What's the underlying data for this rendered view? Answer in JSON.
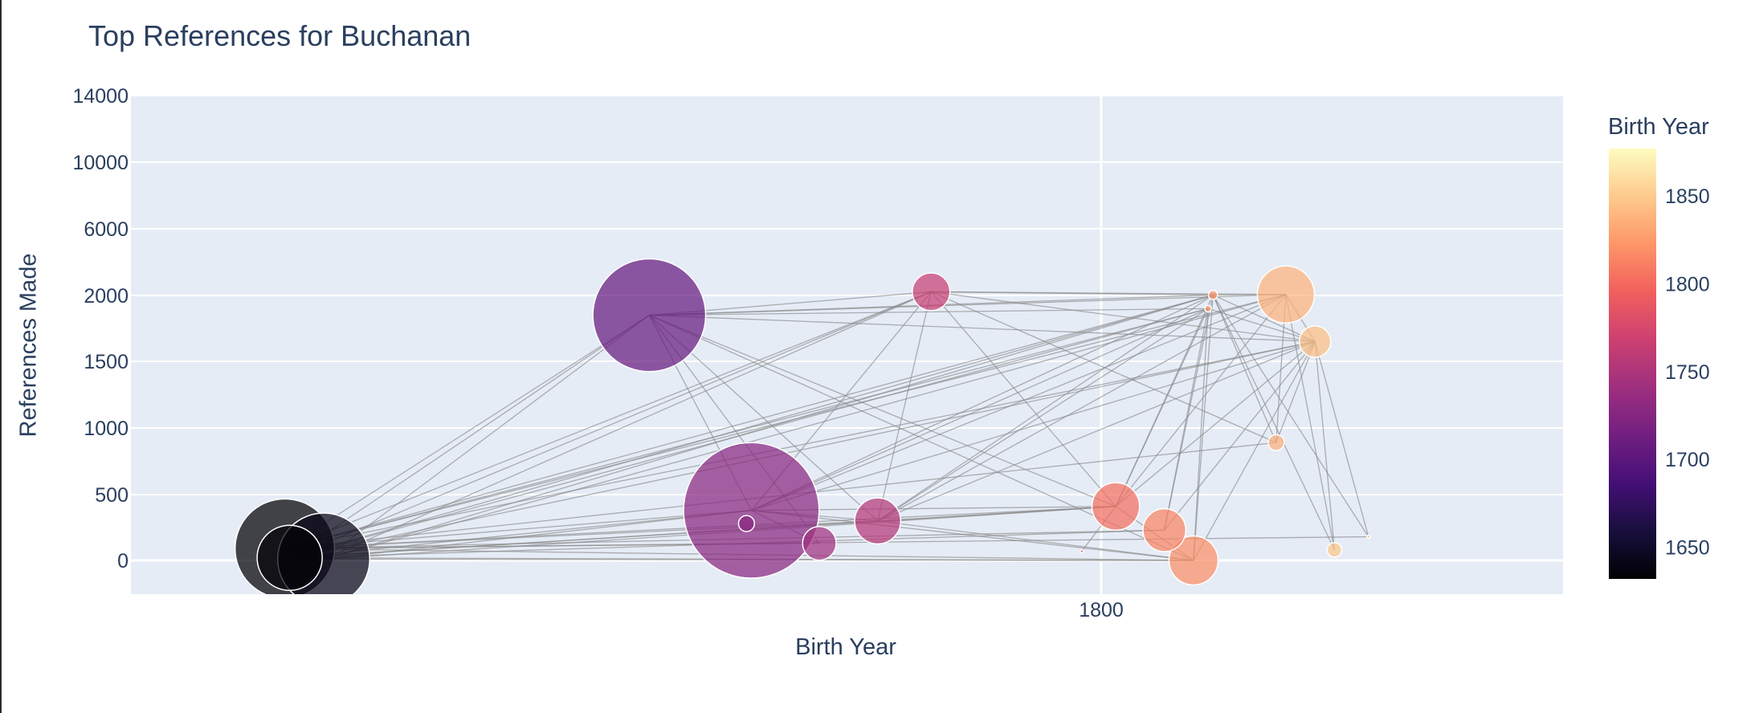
{
  "chart_data": {
    "type": "scatter",
    "title": "Top References for Buchanan",
    "xlabel": "Birth Year",
    "ylabel": "References Made",
    "y_tick_labels": [
      "0",
      "500",
      "1000",
      "1500",
      "2000",
      "6000",
      "10000",
      "14000"
    ],
    "x_tick_labels": [
      "1800"
    ],
    "colorbar": {
      "title": "Birth Year",
      "range": [
        1632,
        1877
      ],
      "tick_labels": [
        "1650",
        "1700",
        "1750",
        "1800",
        "1850"
      ],
      "tick_values": [
        1650,
        1700,
        1750,
        1800,
        1850
      ],
      "colorscale": "magma"
    },
    "grid": true,
    "legend": "none",
    "edge_color": "#888888",
    "points": [
      {
        "x": 1632,
        "y": 90,
        "size": 7000
      },
      {
        "x": 1633,
        "y": 20,
        "size": 3000
      },
      {
        "x": 1640,
        "y": 10,
        "size": 6000
      },
      {
        "x": 1707,
        "y": 1850,
        "size": 9000
      },
      {
        "x": 1728,
        "y": 380,
        "size": 13000
      },
      {
        "x": 1727,
        "y": 280,
        "size": 180
      },
      {
        "x": 1742,
        "y": 130,
        "size": 800
      },
      {
        "x": 1754,
        "y": 300,
        "size": 1500
      },
      {
        "x": 1765,
        "y": 2220,
        "size": 1000
      },
      {
        "x": 1796,
        "y": 70,
        "size": 5
      },
      {
        "x": 1803,
        "y": 410,
        "size": 1600
      },
      {
        "x": 1813,
        "y": 230,
        "size": 1300
      },
      {
        "x": 1819,
        "y": 0,
        "size": 1700
      },
      {
        "x": 1823,
        "y": 2030,
        "size": 60
      },
      {
        "x": 1822,
        "y": 1900,
        "size": 30
      },
      {
        "x": 1836,
        "y": 890,
        "size": 180
      },
      {
        "x": 1838,
        "y": 2060,
        "size": 2300
      },
      {
        "x": 1844,
        "y": 1650,
        "size": 700
      },
      {
        "x": 1848,
        "y": 80,
        "size": 150
      },
      {
        "x": 1855,
        "y": 180,
        "size": 5
      }
    ],
    "edges": [
      [
        0,
        3
      ],
      [
        0,
        4
      ],
      [
        0,
        8
      ],
      [
        0,
        13
      ],
      [
        0,
        14
      ],
      [
        0,
        16
      ],
      [
        0,
        17
      ],
      [
        0,
        10
      ],
      [
        0,
        7
      ],
      [
        0,
        12
      ],
      [
        0,
        19
      ],
      [
        0,
        6
      ],
      [
        0,
        11
      ],
      [
        0,
        15
      ],
      [
        1,
        4
      ],
      [
        1,
        7
      ],
      [
        1,
        10
      ],
      [
        1,
        11
      ],
      [
        1,
        12
      ],
      [
        1,
        13
      ],
      [
        1,
        17
      ],
      [
        1,
        8
      ],
      [
        1,
        14
      ],
      [
        1,
        3
      ],
      [
        2,
        3
      ],
      [
        2,
        4
      ],
      [
        2,
        8
      ],
      [
        2,
        13
      ],
      [
        2,
        16
      ],
      [
        2,
        10
      ],
      [
        2,
        12
      ],
      [
        3,
        4
      ],
      [
        3,
        8
      ],
      [
        3,
        10
      ],
      [
        3,
        12
      ],
      [
        3,
        13
      ],
      [
        3,
        14
      ],
      [
        3,
        16
      ],
      [
        3,
        6
      ],
      [
        3,
        7
      ],
      [
        3,
        17
      ],
      [
        4,
        8
      ],
      [
        4,
        10
      ],
      [
        4,
        13
      ],
      [
        4,
        14
      ],
      [
        4,
        16
      ],
      [
        4,
        17
      ],
      [
        4,
        7
      ],
      [
        4,
        12
      ],
      [
        4,
        6
      ],
      [
        7,
        8
      ],
      [
        7,
        10
      ],
      [
        7,
        13
      ],
      [
        7,
        14
      ],
      [
        7,
        17
      ],
      [
        7,
        16
      ],
      [
        7,
        12
      ],
      [
        8,
        10
      ],
      [
        8,
        13
      ],
      [
        8,
        16
      ],
      [
        8,
        17
      ],
      [
        8,
        15
      ],
      [
        10,
        13
      ],
      [
        10,
        16
      ],
      [
        10,
        17
      ],
      [
        10,
        12
      ],
      [
        10,
        9
      ],
      [
        10,
        14
      ],
      [
        11,
        13
      ],
      [
        11,
        17
      ],
      [
        11,
        14
      ],
      [
        12,
        13
      ],
      [
        12,
        17
      ],
      [
        12,
        14
      ],
      [
        13,
        16
      ],
      [
        13,
        17
      ],
      [
        13,
        15
      ],
      [
        13,
        18
      ],
      [
        13,
        19
      ],
      [
        14,
        17
      ],
      [
        15,
        16
      ],
      [
        15,
        17
      ],
      [
        16,
        17
      ],
      [
        16,
        18
      ],
      [
        17,
        18
      ],
      [
        17,
        19
      ]
    ]
  }
}
